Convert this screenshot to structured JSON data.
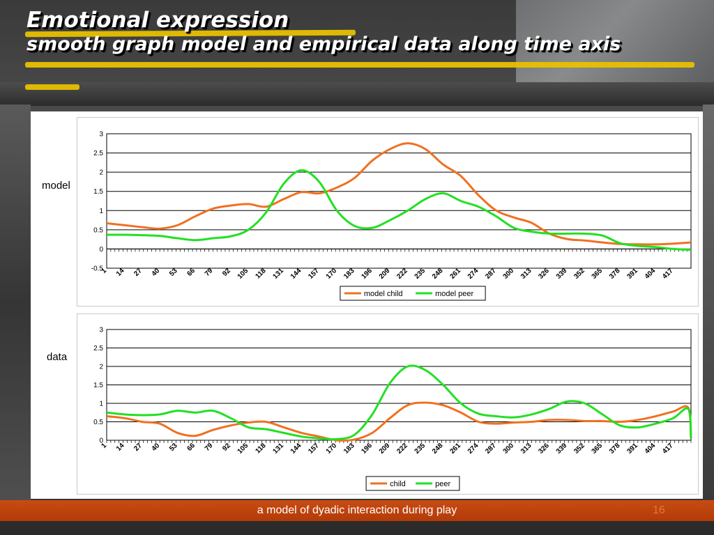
{
  "slide": {
    "title": "Emotional expression",
    "subtitle": "smooth graph model and empirical data along time axis",
    "footer": "a model of dyadic interaction during play",
    "page_number": "16",
    "label_model": "model",
    "label_data": "data"
  },
  "colors": {
    "child": "#f07020",
    "peer": "#22e022",
    "highlight": "#e8c000",
    "footer": "#c0440e"
  },
  "chart_data": [
    {
      "type": "line",
      "title": "",
      "xlabel": "",
      "ylabel": "",
      "ylim": [
        -0.5,
        3
      ],
      "yticks": [
        -0.5,
        0,
        0.5,
        1,
        1.5,
        2,
        2.5,
        3
      ],
      "ytick_labels": [
        "-0.5",
        "0",
        "0.5",
        "1",
        "1.5",
        "2",
        "2.5",
        "3"
      ],
      "grid": true,
      "legend": "bottom-center",
      "x": [
        1,
        14,
        27,
        40,
        53,
        66,
        79,
        92,
        105,
        118,
        131,
        144,
        157,
        170,
        183,
        196,
        209,
        222,
        235,
        248,
        261,
        274,
        287,
        300,
        313,
        326,
        339,
        352,
        365,
        378,
        391,
        404,
        417,
        430
      ],
      "xtick_labels": [
        "1",
        "14",
        "27",
        "40",
        "53",
        "66",
        "79",
        "92",
        "105",
        "118",
        "131",
        "144",
        "157",
        "170",
        "183",
        "196",
        "209",
        "222",
        "235",
        "248",
        "261",
        "274",
        "287",
        "300",
        "313",
        "326",
        "339",
        "352",
        "365",
        "378",
        "391",
        "404",
        "417"
      ],
      "series": [
        {
          "name": "model child",
          "color": "#f07020",
          "values": [
            0.67,
            0.62,
            0.57,
            0.53,
            0.62,
            0.85,
            1.05,
            1.13,
            1.17,
            1.1,
            1.3,
            1.48,
            1.45,
            1.6,
            1.85,
            2.3,
            2.6,
            2.75,
            2.6,
            2.2,
            1.9,
            1.4,
            1.0,
            0.82,
            0.68,
            0.4,
            0.26,
            0.22,
            0.17,
            0.13,
            0.12,
            0.12,
            0.14,
            0.17
          ]
        },
        {
          "name": "model peer",
          "color": "#22e022",
          "values": [
            0.37,
            0.37,
            0.36,
            0.34,
            0.28,
            0.23,
            0.28,
            0.33,
            0.5,
            0.95,
            1.7,
            2.05,
            1.75,
            1.0,
            0.6,
            0.55,
            0.75,
            1.0,
            1.3,
            1.45,
            1.25,
            1.1,
            0.85,
            0.55,
            0.45,
            0.4,
            0.4,
            0.4,
            0.35,
            0.15,
            0.08,
            0.05,
            0.0,
            -0.02
          ]
        }
      ]
    },
    {
      "type": "line",
      "title": "",
      "xlabel": "",
      "ylabel": "",
      "ylim": [
        0,
        3
      ],
      "yticks": [
        0,
        0.5,
        1,
        1.5,
        2,
        2.5,
        3
      ],
      "ytick_labels": [
        "0",
        "0.5",
        "1",
        "1.5",
        "2",
        "2.5",
        "3"
      ],
      "grid": true,
      "legend": "bottom-center",
      "x": [
        1,
        14,
        27,
        40,
        53,
        66,
        79,
        92,
        105,
        118,
        131,
        144,
        157,
        170,
        183,
        196,
        209,
        222,
        235,
        248,
        261,
        274,
        287,
        300,
        313,
        326,
        339,
        352,
        365,
        378,
        391,
        404,
        417,
        428,
        430
      ],
      "xtick_labels": [
        "1",
        "14",
        "27",
        "40",
        "53",
        "66",
        "79",
        "92",
        "105",
        "118",
        "131",
        "144",
        "157",
        "170",
        "183",
        "196",
        "209",
        "222",
        "235",
        "248",
        "261",
        "274",
        "287",
        "300",
        "313",
        "326",
        "339",
        "352",
        "365",
        "378",
        "391",
        "404",
        "417"
      ],
      "series": [
        {
          "name": "child",
          "color": "#f07020",
          "values": [
            0.65,
            0.6,
            0.5,
            0.45,
            0.2,
            0.12,
            0.28,
            0.4,
            0.48,
            0.5,
            0.35,
            0.2,
            0.1,
            0.0,
            0.02,
            0.2,
            0.6,
            0.95,
            1.02,
            0.95,
            0.75,
            0.5,
            0.45,
            0.48,
            0.5,
            0.55,
            0.55,
            0.52,
            0.52,
            0.5,
            0.55,
            0.65,
            0.78,
            0.88,
            0.05
          ]
        },
        {
          "name": "peer",
          "color": "#22e022",
          "values": [
            0.75,
            0.7,
            0.68,
            0.7,
            0.8,
            0.75,
            0.8,
            0.6,
            0.35,
            0.3,
            0.2,
            0.1,
            0.05,
            0.03,
            0.15,
            0.7,
            1.55,
            2.0,
            1.9,
            1.5,
            1.0,
            0.72,
            0.65,
            0.62,
            0.7,
            0.85,
            1.05,
            1.0,
            0.7,
            0.4,
            0.35,
            0.45,
            0.6,
            0.85,
            0.05
          ]
        }
      ]
    }
  ]
}
